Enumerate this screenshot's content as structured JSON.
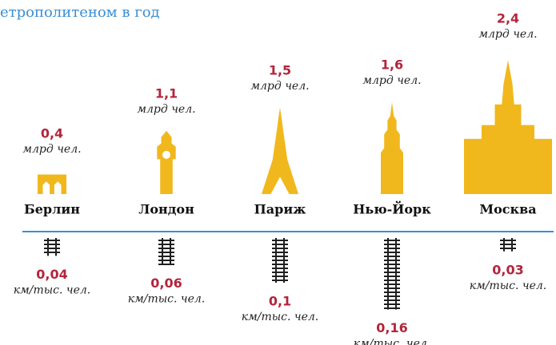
{
  "chart_data": {
    "type": "pictorial",
    "title": "етрополитеном в год",
    "categories": [
      "Берлин",
      "Лондон",
      "Париж",
      "Нью-Йорк",
      "Москва"
    ],
    "series": [
      {
        "unit": "млрд чел.",
        "color": "#f1b81d",
        "values": [
          0.4,
          1.1,
          1.5,
          1.6,
          2.4
        ],
        "value_labels": [
          "0,4",
          "1,1",
          "1,5",
          "1,6",
          "2,4"
        ]
      },
      {
        "unit": "км/тыс. чел.",
        "color": "#1f1f1f",
        "values": [
          0.04,
          0.06,
          0.1,
          0.16,
          0.03
        ],
        "value_labels": [
          "0,04",
          "0,06",
          "0,1",
          "0,16",
          "0,03"
        ]
      }
    ],
    "label_color": "#b3253c",
    "title_color": "#3b8fd2",
    "divider_color": "#3b8fd2"
  }
}
